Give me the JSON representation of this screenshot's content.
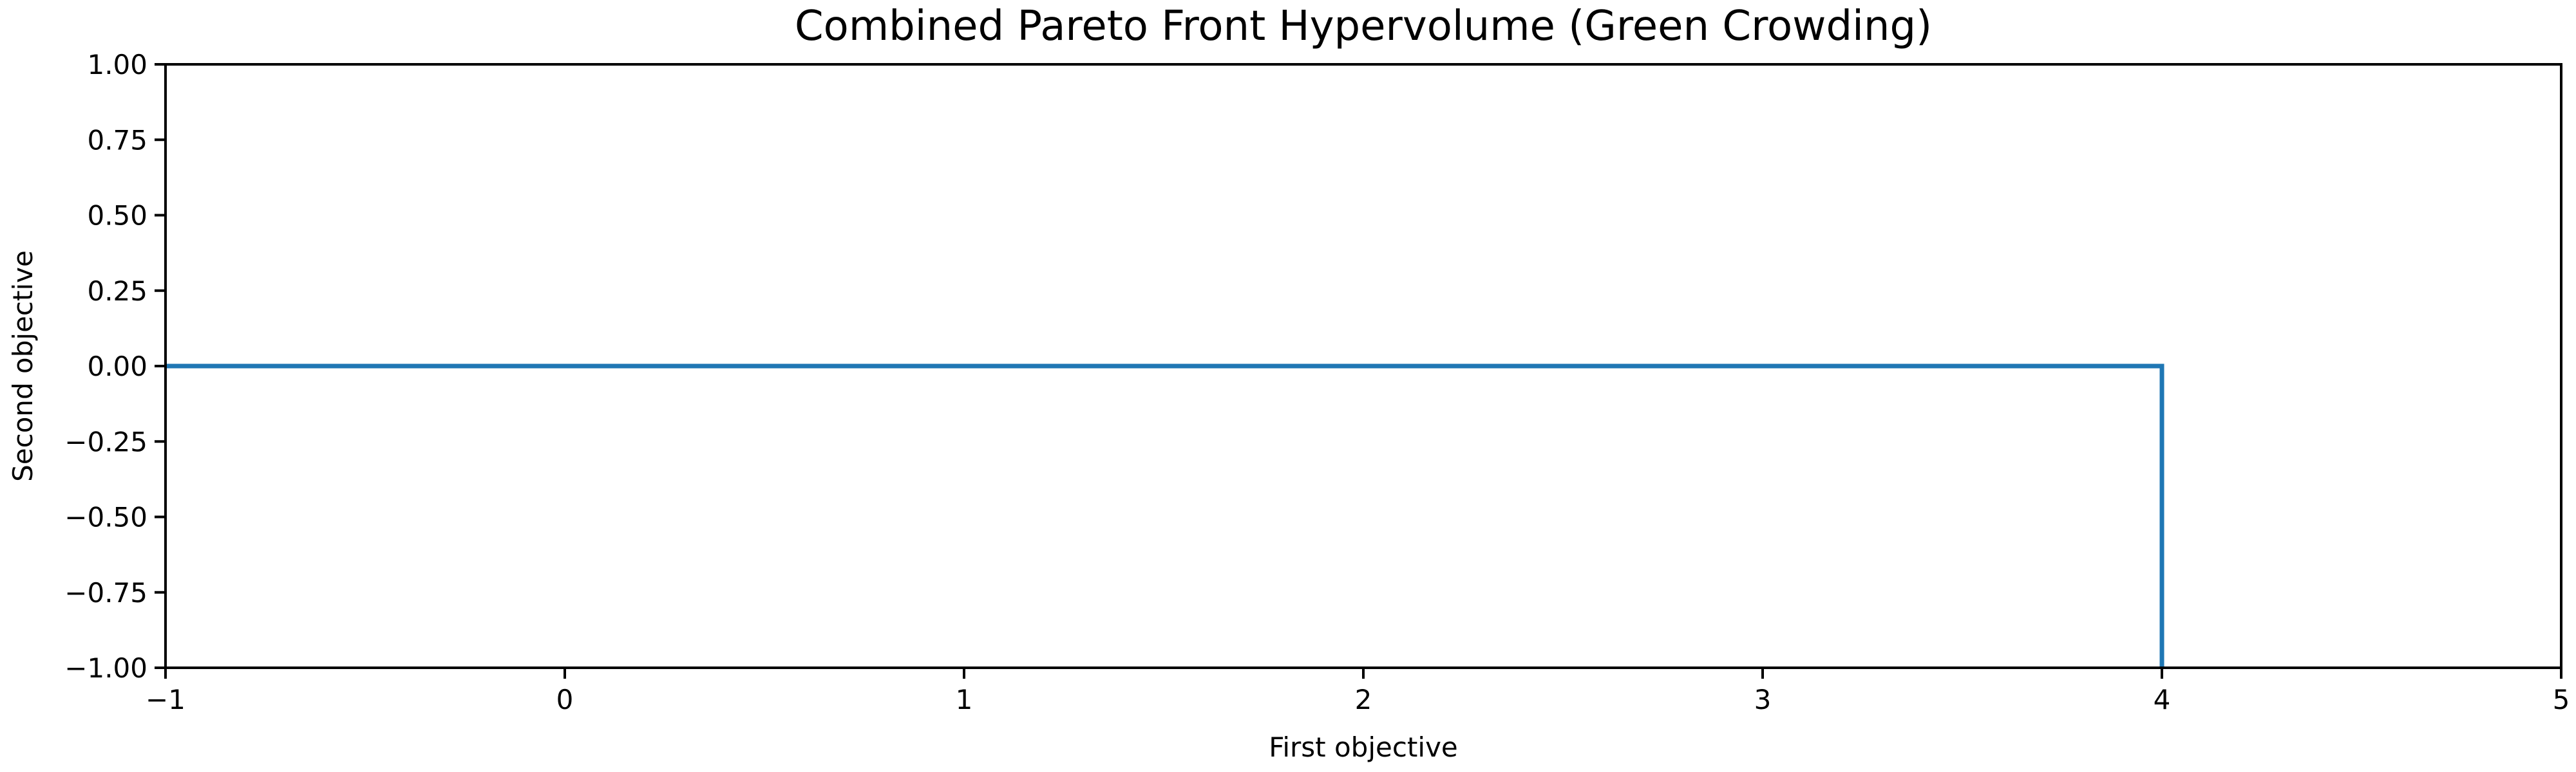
{
  "chart_data": {
    "type": "line",
    "title": "Combined Pareto Front Hypervolume (Green Crowding)",
    "xlabel": "First objective",
    "ylabel": "Second objective",
    "xlim": [
      -1,
      5
    ],
    "ylim": [
      -1,
      1
    ],
    "x_ticks": [
      -1,
      0,
      1,
      2,
      3,
      4,
      5
    ],
    "x_tick_labels": [
      "−1",
      "0",
      "1",
      "2",
      "3",
      "4",
      "5"
    ],
    "y_ticks": [
      1,
      0.75,
      0.5,
      0.25,
      0,
      -0.25,
      -0.5,
      -0.75,
      -1
    ],
    "y_tick_labels": [
      "1.00",
      "0.75",
      "0.50",
      "0.25",
      "0.00",
      "−0.25",
      "−0.50",
      "−0.75",
      "−1.00"
    ],
    "grid": false,
    "legend": "none",
    "series": [
      {
        "color": "#1f77b4",
        "x": [
          -1,
          4,
          4
        ],
        "y": [
          0,
          0,
          -1
        ]
      }
    ]
  }
}
